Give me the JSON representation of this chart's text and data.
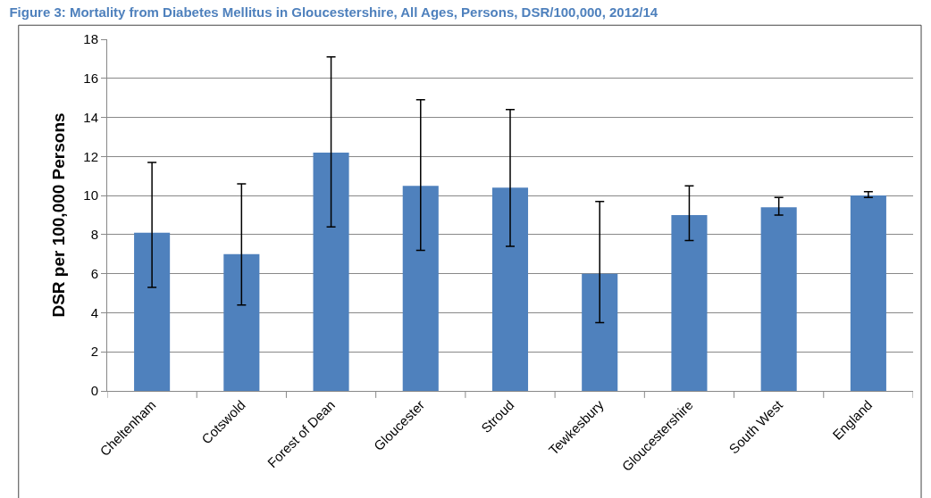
{
  "chart_data": {
    "type": "bar",
    "title": "Figure 3: Mortality from Diabetes Mellitus in Gloucestershire, All Ages, Persons, DSR/100,000, 2012/14",
    "ylabel": "DSR per 100,000 Persons",
    "categories": [
      "Cheltenham",
      "Cotswold",
      "Forest of Dean",
      "Gloucester",
      "Stroud",
      "Tewkesbury",
      "Gloucestershire",
      "South West",
      "England"
    ],
    "values": [
      8.1,
      7.0,
      12.2,
      10.5,
      10.4,
      6.0,
      9.0,
      9.4,
      10.0
    ],
    "errors": [
      [
        5.3,
        11.7
      ],
      [
        4.4,
        10.6
      ],
      [
        8.4,
        17.1
      ],
      [
        7.2,
        14.9
      ],
      [
        7.4,
        14.4
      ],
      [
        3.5,
        9.7
      ],
      [
        7.7,
        10.5
      ],
      [
        9.0,
        9.9
      ],
      [
        9.9,
        10.2
      ]
    ],
    "color": "#4f81bd",
    "ylim": [
      0,
      18
    ],
    "yticks": [
      0,
      2,
      4,
      6,
      8,
      10,
      12,
      14,
      16,
      18
    ],
    "grid": "y",
    "legend": false
  }
}
